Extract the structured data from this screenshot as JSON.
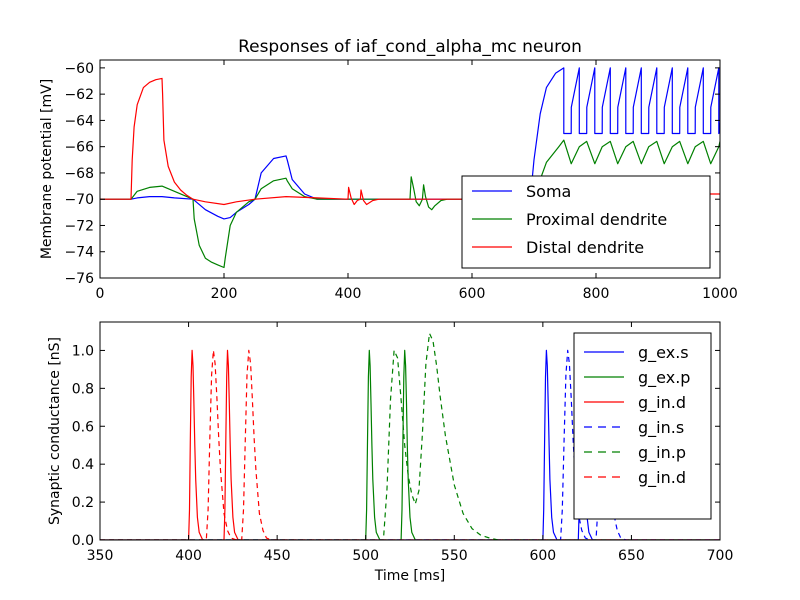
{
  "chart_data": [
    {
      "type": "line",
      "title": "Responses of iaf_cond_alpha_mc neuron",
      "xlabel": "",
      "ylabel": "Membrane potential [mV]",
      "xlim": [
        0,
        1000
      ],
      "ylim": [
        -76,
        -59.4
      ],
      "xticks": [
        "0",
        "200",
        "400",
        "600",
        "800",
        "1000"
      ],
      "yticks": [
        "−76",
        "−74",
        "−72",
        "−70",
        "−68",
        "−66",
        "−64",
        "−62",
        "−60"
      ],
      "legend_position": "lower-right",
      "series": [
        {
          "name": "Soma",
          "color": "#0000ff",
          "x": [
            0,
            50,
            60,
            80,
            100,
            120,
            150,
            170,
            190,
            200,
            210,
            220,
            240,
            250,
            260,
            280,
            300,
            302,
            310,
            330,
            350,
            380,
            400,
            450,
            500,
            550,
            600,
            650,
            680,
            695,
            700,
            710,
            720,
            735,
            748,
            748.1,
            760,
            760.1,
            773,
            773.1,
            785,
            785.1,
            798,
            798.1,
            810,
            810.1,
            823,
            823.1,
            835,
            835.1,
            848,
            848.1,
            860,
            860.1,
            873,
            873.1,
            885,
            885.1,
            898,
            898.1,
            910,
            910.1,
            923,
            923.1,
            935,
            935.1,
            948,
            948.1,
            960,
            960.1,
            973,
            973.1,
            985,
            985.1,
            998,
            998.1,
            1000
          ],
          "y": [
            -70,
            -70,
            -69.9,
            -69.8,
            -69.8,
            -69.9,
            -70,
            -70.8,
            -71.3,
            -71.5,
            -71.4,
            -71.0,
            -70.4,
            -70.0,
            -68.0,
            -66.9,
            -66.7,
            -67.0,
            -68.5,
            -69.6,
            -70.0,
            -70.0,
            -70.0,
            -70.0,
            -70.0,
            -70.0,
            -70.0,
            -70.0,
            -70.0,
            -69.5,
            -67.0,
            -63.5,
            -61.5,
            -60.4,
            -60.0,
            -65.0,
            -65.0,
            -63.0,
            -60.0,
            -65.0,
            -65.0,
            -63.0,
            -60.0,
            -65.0,
            -65.0,
            -63.0,
            -60.0,
            -65.0,
            -65.0,
            -63.0,
            -60.0,
            -65.0,
            -65.0,
            -63.0,
            -60.0,
            -65.0,
            -65.0,
            -63.0,
            -60.0,
            -65.0,
            -65.0,
            -63.0,
            -60.0,
            -65.0,
            -65.0,
            -63.0,
            -60.0,
            -65.0,
            -65.0,
            -63.0,
            -60.0,
            -65.0,
            -65.0,
            -63.0,
            -60.0,
            -65.0,
            -64.2
          ]
        },
        {
          "name": "Proximal dendrite",
          "color": "#008000",
          "x": [
            0,
            50,
            60,
            80,
            100,
            120,
            150,
            152,
            160,
            170,
            180,
            190,
            200,
            202,
            210,
            220,
            240,
            250,
            260,
            280,
            300,
            302,
            310,
            330,
            350,
            400,
            450,
            500,
            502,
            506,
            510,
            515,
            520,
            522,
            525,
            530,
            535,
            540,
            550,
            560,
            600,
            650,
            680,
            700,
            710,
            720,
            740,
            748,
            760,
            773,
            785,
            798,
            810,
            823,
            835,
            848,
            860,
            873,
            885,
            898,
            910,
            923,
            935,
            948,
            960,
            973,
            985,
            998,
            1000
          ],
          "y": [
            -70,
            -70,
            -69.4,
            -69.1,
            -69.0,
            -69.4,
            -70,
            -71.5,
            -73.5,
            -74.5,
            -74.8,
            -75.0,
            -75.2,
            -74.5,
            -72.0,
            -71.0,
            -70.2,
            -70.0,
            -69.2,
            -68.6,
            -68.4,
            -68.6,
            -69.2,
            -69.8,
            -70.0,
            -70.0,
            -70.0,
            -70.0,
            -68.3,
            -69.2,
            -70.2,
            -70.5,
            -70.0,
            -68.9,
            -69.8,
            -70.6,
            -70.8,
            -70.5,
            -70.1,
            -70.0,
            -70.0,
            -70.0,
            -70.0,
            -70.0,
            -68.5,
            -67.2,
            -66.0,
            -65.5,
            -67.3,
            -66.0,
            -65.6,
            -67.3,
            -66.0,
            -65.6,
            -67.3,
            -66.0,
            -65.6,
            -67.3,
            -66.0,
            -65.6,
            -67.3,
            -66.0,
            -65.6,
            -67.3,
            -66.0,
            -65.6,
            -67.3,
            -66.0,
            -65.6
          ]
        },
        {
          "name": "Distal dendrite",
          "color": "#ff0000",
          "x": [
            0,
            50,
            52,
            55,
            60,
            70,
            80,
            90,
            100,
            101,
            103,
            110,
            120,
            130,
            140,
            150,
            170,
            200,
            220,
            250,
            300,
            350,
            400,
            401,
            405,
            410,
            415,
            420,
            421,
            425,
            430,
            440,
            450,
            500,
            550,
            600,
            700,
            750,
            800,
            850,
            900,
            950,
            1000
          ],
          "y": [
            -70,
            -70,
            -67.0,
            -64.5,
            -62.8,
            -61.5,
            -61.1,
            -60.9,
            -60.8,
            -62.0,
            -65.5,
            -67.5,
            -68.7,
            -69.3,
            -69.7,
            -70.0,
            -70.2,
            -70.4,
            -70.2,
            -70.0,
            -69.8,
            -69.9,
            -70.0,
            -69.1,
            -69.9,
            -70.4,
            -70.1,
            -70.0,
            -69.3,
            -70.1,
            -70.4,
            -70.1,
            -70.0,
            -70.0,
            -70.0,
            -70.0,
            -69.9,
            -69.8,
            -69.7,
            -69.7,
            -69.7,
            -69.6,
            -69.6
          ]
        }
      ]
    },
    {
      "type": "line",
      "title": "",
      "xlabel": "Time [ms]",
      "ylabel": "Synaptic conductance [nS]",
      "xlim": [
        350,
        700
      ],
      "ylim": [
        0,
        1.15
      ],
      "xticks": [
        "350",
        "400",
        "450",
        "500",
        "550",
        "600",
        "650",
        "700"
      ],
      "yticks": [
        "0.0",
        "0.2",
        "0.4",
        "0.6",
        "0.8",
        "1.0"
      ],
      "legend_position": "top-right",
      "series": [
        {
          "name": "g_ex.s",
          "color": "#0000ff",
          "style": "solid",
          "x": [
            350,
            600,
            600.5,
            601,
            601.5,
            602,
            602.5,
            603,
            603.5,
            604,
            605,
            606,
            608,
            620,
            620.5,
            621,
            621.5,
            622,
            622.5,
            623,
            623.5,
            624,
            625,
            626,
            628,
            700
          ],
          "y": [
            0,
            0,
            0.16,
            0.52,
            0.86,
            1.0,
            0.92,
            0.72,
            0.5,
            0.32,
            0.12,
            0.04,
            0,
            0,
            0.16,
            0.52,
            0.86,
            1.0,
            0.92,
            0.72,
            0.5,
            0.32,
            0.12,
            0.04,
            0,
            0
          ]
        },
        {
          "name": "g_ex.p",
          "color": "#008000",
          "style": "solid",
          "x": [
            350,
            500,
            500.5,
            501,
            501.5,
            502,
            502.5,
            503,
            503.5,
            504,
            505,
            506,
            508,
            520,
            520.5,
            521,
            521.5,
            522,
            522.5,
            523,
            523.5,
            524,
            525,
            526,
            528,
            700
          ],
          "y": [
            0,
            0,
            0.16,
            0.52,
            0.86,
            1.0,
            0.92,
            0.72,
            0.5,
            0.32,
            0.12,
            0.04,
            0,
            0,
            0.16,
            0.52,
            0.86,
            1.0,
            0.92,
            0.72,
            0.5,
            0.32,
            0.12,
            0.04,
            0,
            0
          ]
        },
        {
          "name": "g_in.d",
          "color": "#ff0000",
          "style": "solid",
          "x": [
            350,
            400,
            400.5,
            401,
            401.5,
            402,
            402.5,
            403,
            403.5,
            404,
            405,
            406,
            408,
            420,
            420.5,
            421,
            421.5,
            422,
            422.5,
            423,
            423.5,
            424,
            425,
            426,
            428,
            700
          ],
          "y": [
            0,
            0,
            0.16,
            0.52,
            0.86,
            1.0,
            0.92,
            0.72,
            0.5,
            0.32,
            0.12,
            0.04,
            0,
            0,
            0.16,
            0.52,
            0.86,
            1.0,
            0.92,
            0.72,
            0.5,
            0.32,
            0.12,
            0.04,
            0,
            0
          ]
        },
        {
          "name": "g_in.s",
          "color": "#0000ff",
          "style": "dashed",
          "x": [
            350,
            610,
            611,
            612,
            613,
            614,
            615,
            616,
            617,
            618,
            620,
            622,
            624,
            627,
            630,
            631,
            632,
            633,
            634,
            635,
            636,
            637,
            638,
            640,
            642,
            644,
            647,
            700
          ],
          "y": [
            0,
            0,
            0.16,
            0.53,
            0.87,
            1.0,
            0.93,
            0.75,
            0.54,
            0.37,
            0.14,
            0.05,
            0.01,
            0,
            0,
            0.16,
            0.53,
            0.87,
            1.0,
            0.93,
            0.75,
            0.54,
            0.37,
            0.14,
            0.05,
            0.01,
            0,
            0
          ]
        },
        {
          "name": "g_in.p",
          "color": "#008000",
          "style": "dashed",
          "x": [
            350,
            510,
            512,
            514,
            516,
            518,
            520,
            522,
            524,
            526,
            528,
            530,
            532,
            534,
            536,
            538,
            540,
            542,
            545,
            550,
            555,
            560,
            565,
            570,
            575,
            700
          ],
          "y": [
            0,
            0,
            0.27,
            0.74,
            1.0,
            0.96,
            0.74,
            0.5,
            0.34,
            0.24,
            0.19,
            0.26,
            0.56,
            0.93,
            1.09,
            1.05,
            0.92,
            0.76,
            0.55,
            0.29,
            0.14,
            0.06,
            0.025,
            0.01,
            0,
            0
          ]
        },
        {
          "name": "g_in.d",
          "color": "#ff0000",
          "style": "dashed",
          "x": [
            350,
            410,
            411,
            412,
            413,
            414,
            415,
            416,
            417,
            418,
            420,
            422,
            424,
            427,
            430,
            431,
            432,
            433,
            434,
            435,
            436,
            437,
            438,
            440,
            442,
            444,
            447,
            700
          ],
          "y": [
            0,
            0,
            0.16,
            0.53,
            0.87,
            1.0,
            0.93,
            0.75,
            0.54,
            0.37,
            0.14,
            0.05,
            0.01,
            0,
            0,
            0.16,
            0.53,
            0.87,
            1.0,
            0.93,
            0.75,
            0.54,
            0.37,
            0.14,
            0.05,
            0.01,
            0,
            0
          ]
        }
      ]
    }
  ]
}
